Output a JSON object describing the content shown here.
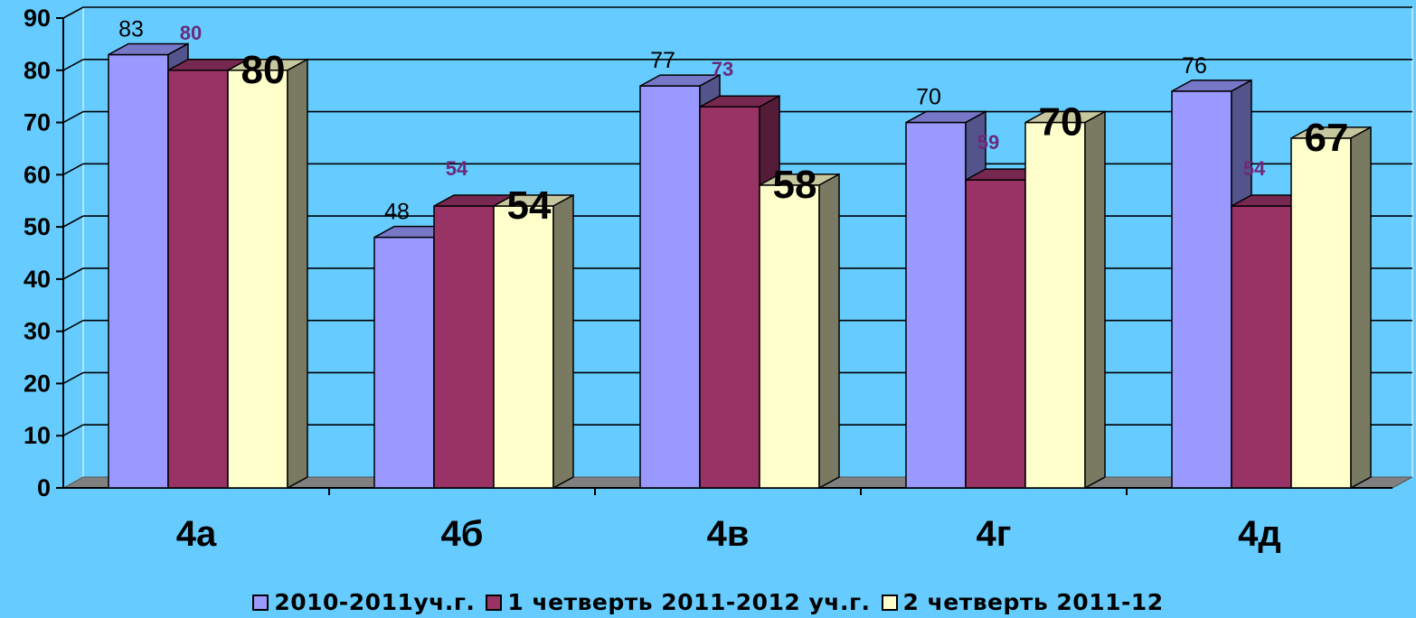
{
  "chart_data": {
    "type": "bar",
    "categories": [
      "4а",
      "4б",
      "4в",
      "4г",
      "4д"
    ],
    "series": [
      {
        "name": "2010-2011уч.г.",
        "values": [
          83,
          48,
          77,
          70,
          76
        ],
        "color": "#9999ff"
      },
      {
        "name": "1 четверть 2011-2012 уч.г.",
        "values": [
          80,
          54,
          73,
          59,
          54
        ],
        "color": "#993366"
      },
      {
        "name": "2 четверть 2011-12",
        "values": [
          80,
          54,
          58,
          70,
          67
        ],
        "color": "#ffffcc"
      }
    ],
    "ylim": [
      0,
      90
    ],
    "yticks": [
      "0",
      "10",
      "20",
      "30",
      "40",
      "50",
      "60",
      "70",
      "80",
      "90"
    ],
    "grid": true,
    "three_d": true,
    "legend_position": "bottom",
    "background": "#66ccff"
  }
}
